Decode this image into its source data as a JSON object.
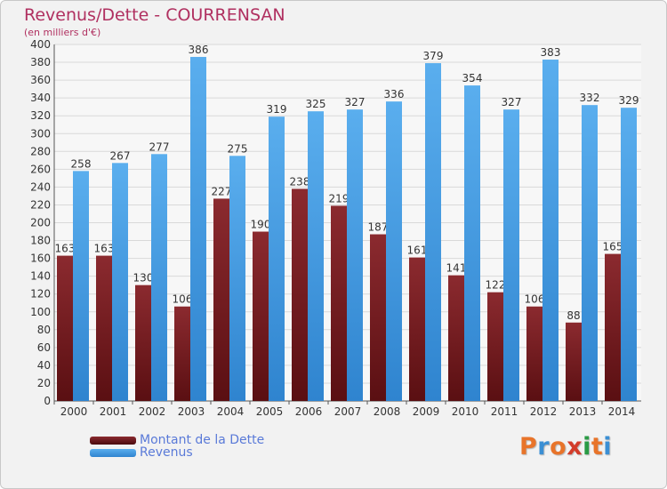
{
  "chart_data": {
    "type": "bar",
    "title": "Revenus/Dette - COURRENSAN",
    "subtitle": "(en milliers d'€)",
    "categories": [
      "2000",
      "2001",
      "2002",
      "2003",
      "2004",
      "2005",
      "2006",
      "2007",
      "2008",
      "2009",
      "2010",
      "2011",
      "2012",
      "2013",
      "2014"
    ],
    "series": [
      {
        "name": "Montant de la Dette",
        "color": "#7a1f24",
        "values": [
          163,
          163,
          130,
          106,
          227,
          190,
          238,
          219,
          187,
          161,
          141,
          122,
          106,
          88,
          165
        ]
      },
      {
        "name": "Revenus",
        "color": "#4da3e6",
        "values": [
          258,
          267,
          277,
          386,
          275,
          319,
          325,
          327,
          336,
          379,
          354,
          327,
          383,
          332,
          329
        ]
      }
    ],
    "ylim": [
      0,
      400
    ],
    "yticks": [
      0,
      20,
      40,
      60,
      80,
      100,
      120,
      140,
      160,
      180,
      200,
      220,
      240,
      260,
      280,
      300,
      320,
      340,
      360,
      380,
      400
    ],
    "grid": true,
    "legend_position": "bottom-left"
  },
  "brand": {
    "text": "Proxiti",
    "colors": [
      "#e8742a",
      "#3b8fd4",
      "#e8742a",
      "#d33c2a",
      "#2a9b45",
      "#e8742a",
      "#3b8fd4"
    ]
  }
}
